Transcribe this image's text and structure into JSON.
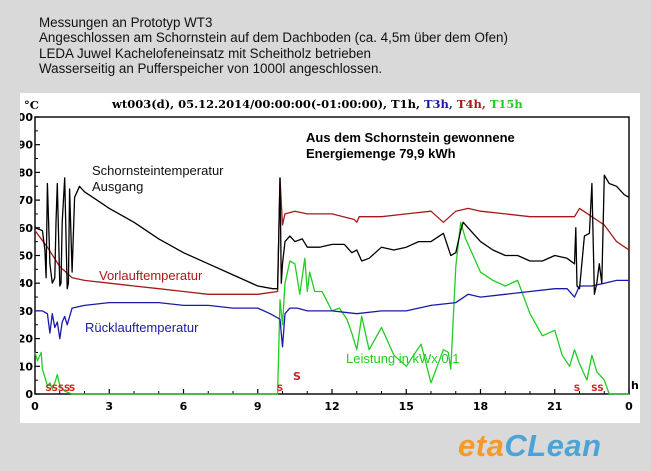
{
  "header": {
    "line1": "Messungen an Prototyp WT3",
    "line2": "Angeschlossen am Schornstein auf dem Dachboden (ca. 4,5m über dem Ofen)",
    "line3": "LEDA Juwel Kachelofeneinsatz mit Scheitholz betrieben",
    "line4": "Wasserseitig an Pufferspeicher von 1000l angeschlossen."
  },
  "logo": {
    "part1": "eta",
    "part2": "CLean"
  },
  "chart_data": {
    "type": "line",
    "title_prefix": "wt003(d), 05.12.2014/00:00:00(-01:00:00), ",
    "title_series": [
      {
        "label": "T1h",
        "color": "#000000"
      },
      {
        "label": "T3h",
        "color": "#1a1aa6"
      },
      {
        "label": "T4h",
        "color": "#a61a1a"
      },
      {
        "label": "T15h",
        "color": "#22cc22"
      }
    ],
    "ylabel": "°C",
    "xlabel": "h",
    "ylim": [
      0,
      100
    ],
    "xlim": [
      0,
      24
    ],
    "yticks": [
      "0",
      "10",
      "20",
      "30",
      "40",
      "50",
      "60",
      "70",
      "80",
      "90",
      "100"
    ],
    "xticks": [
      "0",
      "3",
      "6",
      "9",
      "12",
      "15",
      "18",
      "21",
      "0"
    ],
    "grid": false,
    "annotations": {
      "energy_line1": "Aus dem Schornstein gewonnene",
      "energy_line2": "Energiemenge 79,9 kWh",
      "chimney_line1": "Schornsteintemperatur",
      "chimney_line2": "Ausgang",
      "flow": "Vorlauftemperatur",
      "return": "Rücklauftemperatur",
      "power": "Leistung in kWx 0,1",
      "start_marker": "S"
    },
    "start_markers": [
      {
        "x": 0.55,
        "label": "S"
      },
      {
        "x": 0.8,
        "label": "S"
      },
      {
        "x": 1.05,
        "label": "S"
      },
      {
        "x": 1.3,
        "label": "S"
      },
      {
        "x": 1.5,
        "label": "S"
      },
      {
        "x": 9.9,
        "label": "S"
      },
      {
        "x": 21.9,
        "label": "S"
      },
      {
        "x": 22.6,
        "label": "S"
      },
      {
        "x": 22.85,
        "label": "S"
      }
    ],
    "series": [
      {
        "name": "Schornsteintemperatur Ausgang",
        "key": "T1h",
        "color": "#000000",
        "x": [
          0,
          0.3,
          0.4,
          0.45,
          0.5,
          0.6,
          0.7,
          0.8,
          0.85,
          0.9,
          1.0,
          1.05,
          1.1,
          1.2,
          1.3,
          1.35,
          1.4,
          1.5,
          1.6,
          1.8,
          2.0,
          2.5,
          3.0,
          4.0,
          5.0,
          6.0,
          7.0,
          8.0,
          9.0,
          9.6,
          9.8,
          9.9,
          9.95,
          10.0,
          10.1,
          10.3,
          10.5,
          10.8,
          11.0,
          11.5,
          12.0,
          12.5,
          12.8,
          13.0,
          13.2,
          13.5,
          14.0,
          14.5,
          15.0,
          15.5,
          16.0,
          16.5,
          16.8,
          17.0,
          17.2,
          17.3,
          17.5,
          18.0,
          18.5,
          19.0,
          19.5,
          20.0,
          20.5,
          21.0,
          21.5,
          21.8,
          21.85,
          21.9,
          22.0,
          22.2,
          22.4,
          22.5,
          22.6,
          22.7,
          22.8,
          22.9,
          23.0,
          23.2,
          23.5,
          23.8,
          24.0
        ],
        "y": [
          60,
          59,
          52,
          42,
          76,
          47,
          40,
          42,
          62,
          76,
          39,
          40,
          62,
          78,
          38,
          40,
          74,
          44,
          71,
          75,
          73,
          70,
          67,
          62,
          56,
          51,
          47,
          43,
          39,
          38,
          38,
          78,
          40,
          47,
          55,
          57,
          55,
          56,
          53,
          53,
          54,
          54,
          51,
          52,
          48,
          49,
          53,
          52,
          53,
          55,
          55,
          58,
          50,
          51,
          59,
          62,
          60,
          55,
          52,
          50,
          50,
          48,
          48,
          50,
          49,
          47,
          60,
          39,
          38,
          57,
          58,
          76,
          36,
          40,
          47,
          40,
          79,
          76,
          75,
          72,
          71
        ]
      },
      {
        "name": "Vorlauftemperatur",
        "key": "T4h",
        "color": "#a61a1a",
        "x": [
          0,
          0.5,
          1.0,
          1.5,
          2.0,
          3.0,
          4.0,
          5.0,
          6.0,
          7.0,
          8.0,
          9.0,
          9.8,
          9.9,
          10.0,
          10.1,
          10.5,
          11.0,
          12.0,
          12.9,
          13.0,
          13.1,
          14.0,
          15.0,
          16.0,
          16.5,
          17.0,
          17.5,
          18.0,
          19.0,
          20.0,
          21.0,
          21.8,
          22.0,
          22.5,
          23.0,
          23.5,
          24.0
        ],
        "y": [
          59,
          53,
          46,
          42,
          41,
          40,
          39,
          38,
          37,
          36,
          36,
          36,
          37,
          78,
          61,
          65,
          66,
          65,
          65,
          63,
          62,
          64,
          64,
          65,
          66,
          62,
          66,
          67,
          66,
          65,
          64,
          64,
          64,
          67,
          64,
          61,
          55,
          52
        ]
      },
      {
        "name": "Rücklauftemperatur",
        "key": "T3h",
        "color": "#1a1aa6",
        "x": [
          0,
          0.3,
          0.5,
          0.6,
          0.7,
          0.8,
          0.9,
          1.0,
          1.1,
          1.2,
          1.3,
          1.5,
          2.0,
          3.0,
          4.0,
          5.0,
          6.0,
          7.0,
          8.0,
          9.0,
          9.5,
          9.9,
          10.0,
          10.1,
          10.3,
          10.6,
          11.0,
          12.0,
          13.0,
          14.0,
          15.0,
          16.0,
          17.0,
          17.5,
          18.0,
          19.0,
          20.0,
          21.0,
          21.5,
          21.8,
          22.0,
          22.5,
          23.0,
          23.5,
          24.0
        ],
        "y": [
          30,
          30,
          29,
          22,
          29,
          24,
          26,
          20,
          26,
          28,
          25,
          31,
          32,
          33,
          33,
          33,
          32,
          32,
          31,
          31,
          29,
          27,
          17,
          29,
          31,
          31,
          30,
          30,
          29,
          30,
          30,
          32,
          33,
          36,
          35,
          36,
          37,
          38,
          38,
          35,
          39,
          39,
          40,
          41,
          41
        ]
      },
      {
        "name": "Leistung in kWx 0,1",
        "key": "T15h",
        "color": "#22cc22",
        "x": [
          0,
          0.1,
          0.25,
          0.3,
          0.4,
          0.5,
          0.6,
          0.7,
          0.8,
          0.9,
          1.0,
          1.2,
          1.5,
          2.0,
          4.0,
          6.0,
          8.0,
          9.0,
          9.8,
          9.9,
          10.0,
          10.1,
          10.3,
          10.5,
          10.7,
          10.9,
          11.0,
          11.1,
          11.3,
          11.6,
          12.0,
          12.3,
          12.6,
          12.8,
          13.0,
          13.2,
          13.5,
          14.0,
          14.5,
          15.0,
          15.3,
          15.6,
          16.0,
          16.5,
          16.7,
          16.8,
          17.0,
          17.2,
          17.4,
          17.6,
          18.0,
          18.5,
          19.0,
          19.5,
          20.0,
          20.5,
          21.0,
          21.3,
          21.6,
          21.8,
          22.0,
          22.3,
          22.5,
          22.7,
          23.0,
          23.2,
          24.0
        ],
        "y": [
          15,
          12,
          15,
          9,
          6,
          3,
          4,
          2,
          4,
          7,
          3,
          1,
          0,
          0,
          0,
          0,
          0,
          0,
          0,
          34,
          25,
          40,
          48,
          47,
          36,
          49,
          37,
          44,
          37,
          37,
          30,
          31,
          27,
          22,
          16,
          28,
          16,
          24,
          14,
          10,
          14,
          18,
          4,
          16,
          15,
          9,
          46,
          62,
          56,
          52,
          44,
          41,
          39,
          41,
          29,
          21,
          23,
          14,
          10,
          16,
          11,
          5,
          14,
          8,
          5,
          0,
          0
        ]
      }
    ]
  }
}
